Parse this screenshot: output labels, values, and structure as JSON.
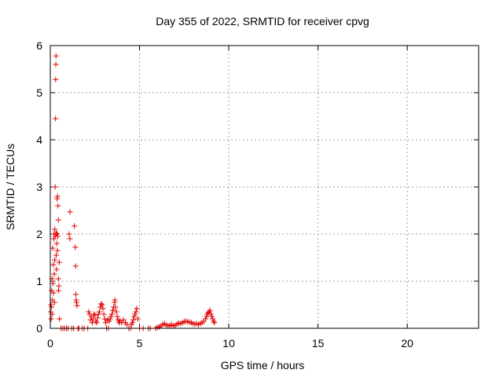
{
  "chart_data": {
    "type": "scatter",
    "title": "Day 355 of 2022, SRMTID for receiver cpvg",
    "xlabel": "GPS time / hours",
    "ylabel": "SRMTID / TECUs",
    "xlim": [
      0,
      24
    ],
    "ylim": [
      0,
      6
    ],
    "xticks": [
      "0",
      "5",
      "10",
      "15",
      "20"
    ],
    "yticks": [
      "0",
      "1",
      "2",
      "3",
      "4",
      "5",
      "6"
    ],
    "grid": true,
    "marker": "+",
    "color": "#e00000",
    "series": [
      {
        "points": [
          [
            0.02,
            0.35
          ],
          [
            0.04,
            0.5
          ],
          [
            0.05,
            0.2
          ],
          [
            0.07,
            0.45
          ],
          [
            0.08,
            0.8
          ],
          [
            0.1,
            0.3
          ],
          [
            0.1,
            1.05
          ],
          [
            0.12,
            0.6
          ],
          [
            0.13,
            1.7
          ],
          [
            0.15,
            0.95
          ],
          [
            0.17,
            1.35
          ],
          [
            0.18,
            0.75
          ],
          [
            0.2,
            1.9
          ],
          [
            0.21,
            2.0
          ],
          [
            0.22,
            1.15
          ],
          [
            0.23,
            0.55
          ],
          [
            0.25,
            1.45
          ],
          [
            0.25,
            2.1
          ],
          [
            0.27,
            3.0
          ],
          [
            0.28,
            1.95
          ],
          [
            0.29,
            4.45
          ],
          [
            0.3,
            5.28
          ],
          [
            0.31,
            5.6
          ],
          [
            0.32,
            5.78
          ],
          [
            0.33,
            2.02
          ],
          [
            0.33,
            1.55
          ],
          [
            0.35,
            1.25
          ],
          [
            0.36,
            1.8
          ],
          [
            0.37,
            2.0
          ],
          [
            0.38,
            2.75
          ],
          [
            0.4,
            2.8
          ],
          [
            0.4,
            1.65
          ],
          [
            0.42,
            1.95
          ],
          [
            0.43,
            2.6
          ],
          [
            0.45,
            1.05
          ],
          [
            0.45,
            2.3
          ],
          [
            0.46,
            0.8
          ],
          [
            0.48,
            0.9
          ],
          [
            0.5,
            1.4
          ],
          [
            0.52,
            0.2
          ],
          [
            0.6,
            0.0
          ],
          [
            0.7,
            0.0
          ],
          [
            0.8,
            0.0
          ],
          [
            0.9,
            0.0
          ],
          [
            1.0,
            0.0
          ],
          [
            1.05,
            2.0
          ],
          [
            1.1,
            2.47
          ],
          [
            1.1,
            1.9
          ],
          [
            1.2,
            0.0
          ],
          [
            1.3,
            0.0
          ],
          [
            1.35,
            2.17
          ],
          [
            1.4,
            1.72
          ],
          [
            1.42,
            1.32
          ],
          [
            1.43,
            0.72
          ],
          [
            1.45,
            0.6
          ],
          [
            1.47,
            0.55
          ],
          [
            1.5,
            0.48
          ],
          [
            1.55,
            0.0
          ],
          [
            1.6,
            0.0
          ],
          [
            1.8,
            0.0
          ],
          [
            1.9,
            0.0
          ],
          [
            2.1,
            0.0
          ],
          [
            2.15,
            0.35
          ],
          [
            2.2,
            0.3
          ],
          [
            2.25,
            0.18
          ],
          [
            2.3,
            0.25
          ],
          [
            2.35,
            0.12
          ],
          [
            2.4,
            0.2
          ],
          [
            2.45,
            0.3
          ],
          [
            2.5,
            0.28
          ],
          [
            2.55,
            0.15
          ],
          [
            2.6,
            0.12
          ],
          [
            2.65,
            0.22
          ],
          [
            2.7,
            0.3
          ],
          [
            2.75,
            0.35
          ],
          [
            2.8,
            0.45
          ],
          [
            2.85,
            0.52
          ],
          [
            2.9,
            0.5
          ],
          [
            2.95,
            0.42
          ],
          [
            3.0,
            0.3
          ],
          [
            3.05,
            0.2
          ],
          [
            3.1,
            0.12
          ],
          [
            3.15,
            0.0
          ],
          [
            3.2,
            0.18
          ],
          [
            3.25,
            0.0
          ],
          [
            3.3,
            0.15
          ],
          [
            3.35,
            0.2
          ],
          [
            3.4,
            0.25
          ],
          [
            3.45,
            0.3
          ],
          [
            3.5,
            0.38
          ],
          [
            3.55,
            0.45
          ],
          [
            3.6,
            0.55
          ],
          [
            3.62,
            0.6
          ],
          [
            3.65,
            0.45
          ],
          [
            3.7,
            0.35
          ],
          [
            3.75,
            0.25
          ],
          [
            3.8,
            0.18
          ],
          [
            3.85,
            0.12
          ],
          [
            3.9,
            0.15
          ],
          [
            4.0,
            0.12
          ],
          [
            4.1,
            0.18
          ],
          [
            4.2,
            0.12
          ],
          [
            4.3,
            0.08
          ],
          [
            4.4,
            0.0
          ],
          [
            4.5,
            0.0
          ],
          [
            4.55,
            0.08
          ],
          [
            4.6,
            0.12
          ],
          [
            4.65,
            0.18
          ],
          [
            4.7,
            0.25
          ],
          [
            4.75,
            0.3
          ],
          [
            4.8,
            0.35
          ],
          [
            4.85,
            0.42
          ],
          [
            4.9,
            0.2
          ],
          [
            5.0,
            0.0
          ],
          [
            5.2,
            0.0
          ],
          [
            5.5,
            0.0
          ],
          [
            5.6,
            0.0
          ],
          [
            5.9,
            0.0
          ],
          [
            6.0,
            0.02
          ],
          [
            6.1,
            0.03
          ],
          [
            6.2,
            0.05
          ],
          [
            6.3,
            0.08
          ],
          [
            6.4,
            0.1
          ],
          [
            6.5,
            0.07
          ],
          [
            6.6,
            0.05
          ],
          [
            6.7,
            0.06
          ],
          [
            6.8,
            0.08
          ],
          [
            6.9,
            0.05
          ],
          [
            7.0,
            0.06
          ],
          [
            7.1,
            0.09
          ],
          [
            7.2,
            0.11
          ],
          [
            7.3,
            0.1
          ],
          [
            7.4,
            0.12
          ],
          [
            7.5,
            0.14
          ],
          [
            7.6,
            0.15
          ],
          [
            7.7,
            0.14
          ],
          [
            7.8,
            0.13
          ],
          [
            7.9,
            0.12
          ],
          [
            8.0,
            0.1
          ],
          [
            8.1,
            0.09
          ],
          [
            8.2,
            0.1
          ],
          [
            8.3,
            0.08
          ],
          [
            8.4,
            0.1
          ],
          [
            8.5,
            0.12
          ],
          [
            8.6,
            0.15
          ],
          [
            8.7,
            0.2
          ],
          [
            8.75,
            0.25
          ],
          [
            8.8,
            0.3
          ],
          [
            8.85,
            0.33
          ],
          [
            8.9,
            0.35
          ],
          [
            8.95,
            0.38
          ],
          [
            9.0,
            0.3
          ],
          [
            9.05,
            0.25
          ],
          [
            9.1,
            0.2
          ],
          [
            9.15,
            0.15
          ],
          [
            9.2,
            0.12
          ]
        ]
      }
    ]
  }
}
